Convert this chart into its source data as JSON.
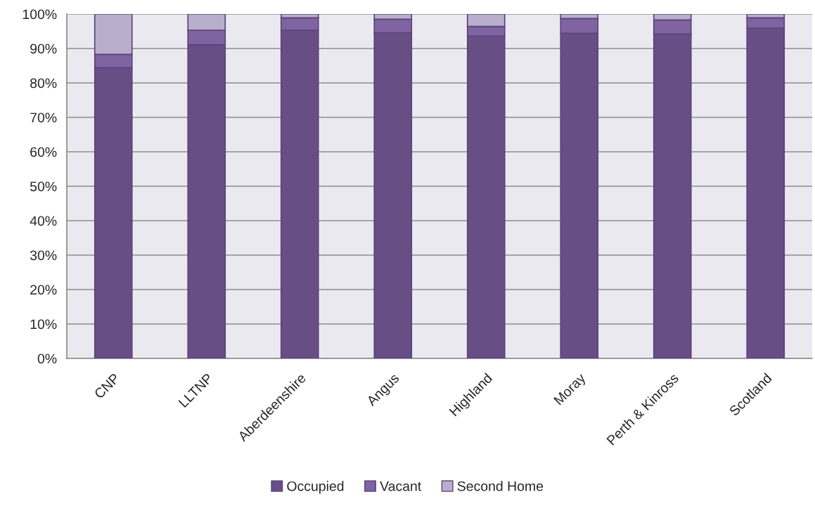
{
  "chart_data": {
    "type": "bar",
    "stacked": true,
    "categories": [
      "CNP",
      "LLTNP",
      "Aberdeenshire",
      "Angus",
      "Highland",
      "Moray",
      "Perth & Kinross",
      "Scotland"
    ],
    "series": [
      {
        "name": "Occupied",
        "color": "#674f86",
        "values": [
          84.4,
          91.1,
          95.3,
          94.6,
          93.6,
          94.4,
          94.2,
          95.9
        ]
      },
      {
        "name": "Vacant",
        "color": "#8064a2",
        "values": [
          3.9,
          4.2,
          3.6,
          3.9,
          2.8,
          4.3,
          4.1,
          3.0
        ]
      },
      {
        "name": "Second Home",
        "color": "#b9aecb",
        "values": [
          11.7,
          4.7,
          1.1,
          1.5,
          3.6,
          1.3,
          1.7,
          1.1
        ]
      }
    ],
    "ylim": [
      0,
      100
    ],
    "yticks": [
      {
        "value": 0,
        "label": "0%"
      },
      {
        "value": 10,
        "label": "10%"
      },
      {
        "value": 20,
        "label": "20%"
      },
      {
        "value": 30,
        "label": "30%"
      },
      {
        "value": 40,
        "label": "40%"
      },
      {
        "value": 50,
        "label": "50%"
      },
      {
        "value": 60,
        "label": "60%"
      },
      {
        "value": 70,
        "label": "70%"
      },
      {
        "value": 80,
        "label": "80%"
      },
      {
        "value": 90,
        "label": "90%"
      },
      {
        "value": 100,
        "label": "100%"
      }
    ],
    "grid": "y",
    "legend": "bottom"
  }
}
